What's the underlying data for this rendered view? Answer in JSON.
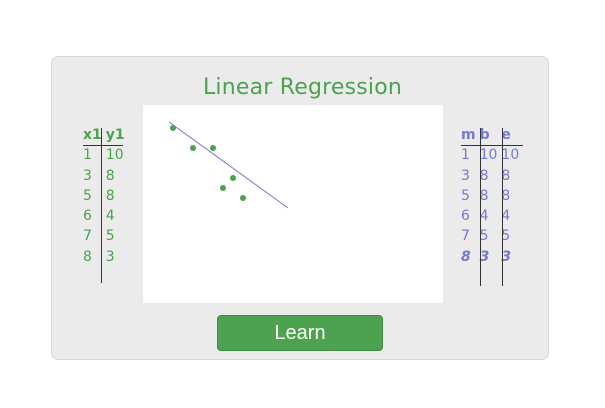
{
  "title": "Linear Regression",
  "left_table": {
    "headers": [
      "x1",
      "y1"
    ],
    "rows": [
      [
        "1",
        "10"
      ],
      [
        "3",
        "8"
      ],
      [
        "5",
        "8"
      ],
      [
        "6",
        "4"
      ],
      [
        "7",
        "5"
      ],
      [
        "8",
        "3"
      ]
    ]
  },
  "right_table": {
    "headers": [
      "m",
      "b",
      "e"
    ],
    "rows": [
      [
        "1",
        "10",
        "10"
      ],
      [
        "3",
        "8",
        "8"
      ],
      [
        "5",
        "8",
        "8"
      ],
      [
        "6",
        "4",
        "4"
      ],
      [
        "7",
        "5",
        "5"
      ],
      [
        "8",
        "3",
        "3"
      ]
    ]
  },
  "learn_button": {
    "label": "Learn"
  },
  "colors": {
    "points": "#4ca24f",
    "fit_line": "#7379d4",
    "button": "#4ca24f"
  },
  "chart_data": {
    "type": "scatter",
    "points": [
      [
        1,
        10
      ],
      [
        3,
        8
      ],
      [
        5,
        8
      ],
      [
        6,
        4
      ],
      [
        7,
        5
      ],
      [
        8,
        3
      ]
    ],
    "fit_line": [
      [
        0.6,
        10.6
      ],
      [
        12.5,
        2.0
      ]
    ]
  }
}
